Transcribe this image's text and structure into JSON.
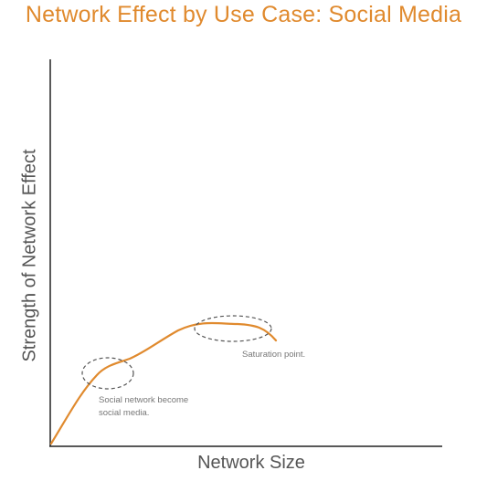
{
  "chart_data": {
    "type": "line",
    "title": "Network Effect by Use Case: Social Media",
    "xlabel": "Network Size",
    "ylabel": "Strength of Network Effect",
    "grid": false,
    "legend": "none",
    "line_color": "#e08a2e",
    "title_color": "#e08a2e",
    "annotations": [
      {
        "lines": [
          "Social network become",
          "social media."
        ],
        "marker": "dashed-ellipse"
      },
      {
        "lines": [
          "Saturation point."
        ],
        "marker": "dashed-ellipse"
      }
    ]
  }
}
